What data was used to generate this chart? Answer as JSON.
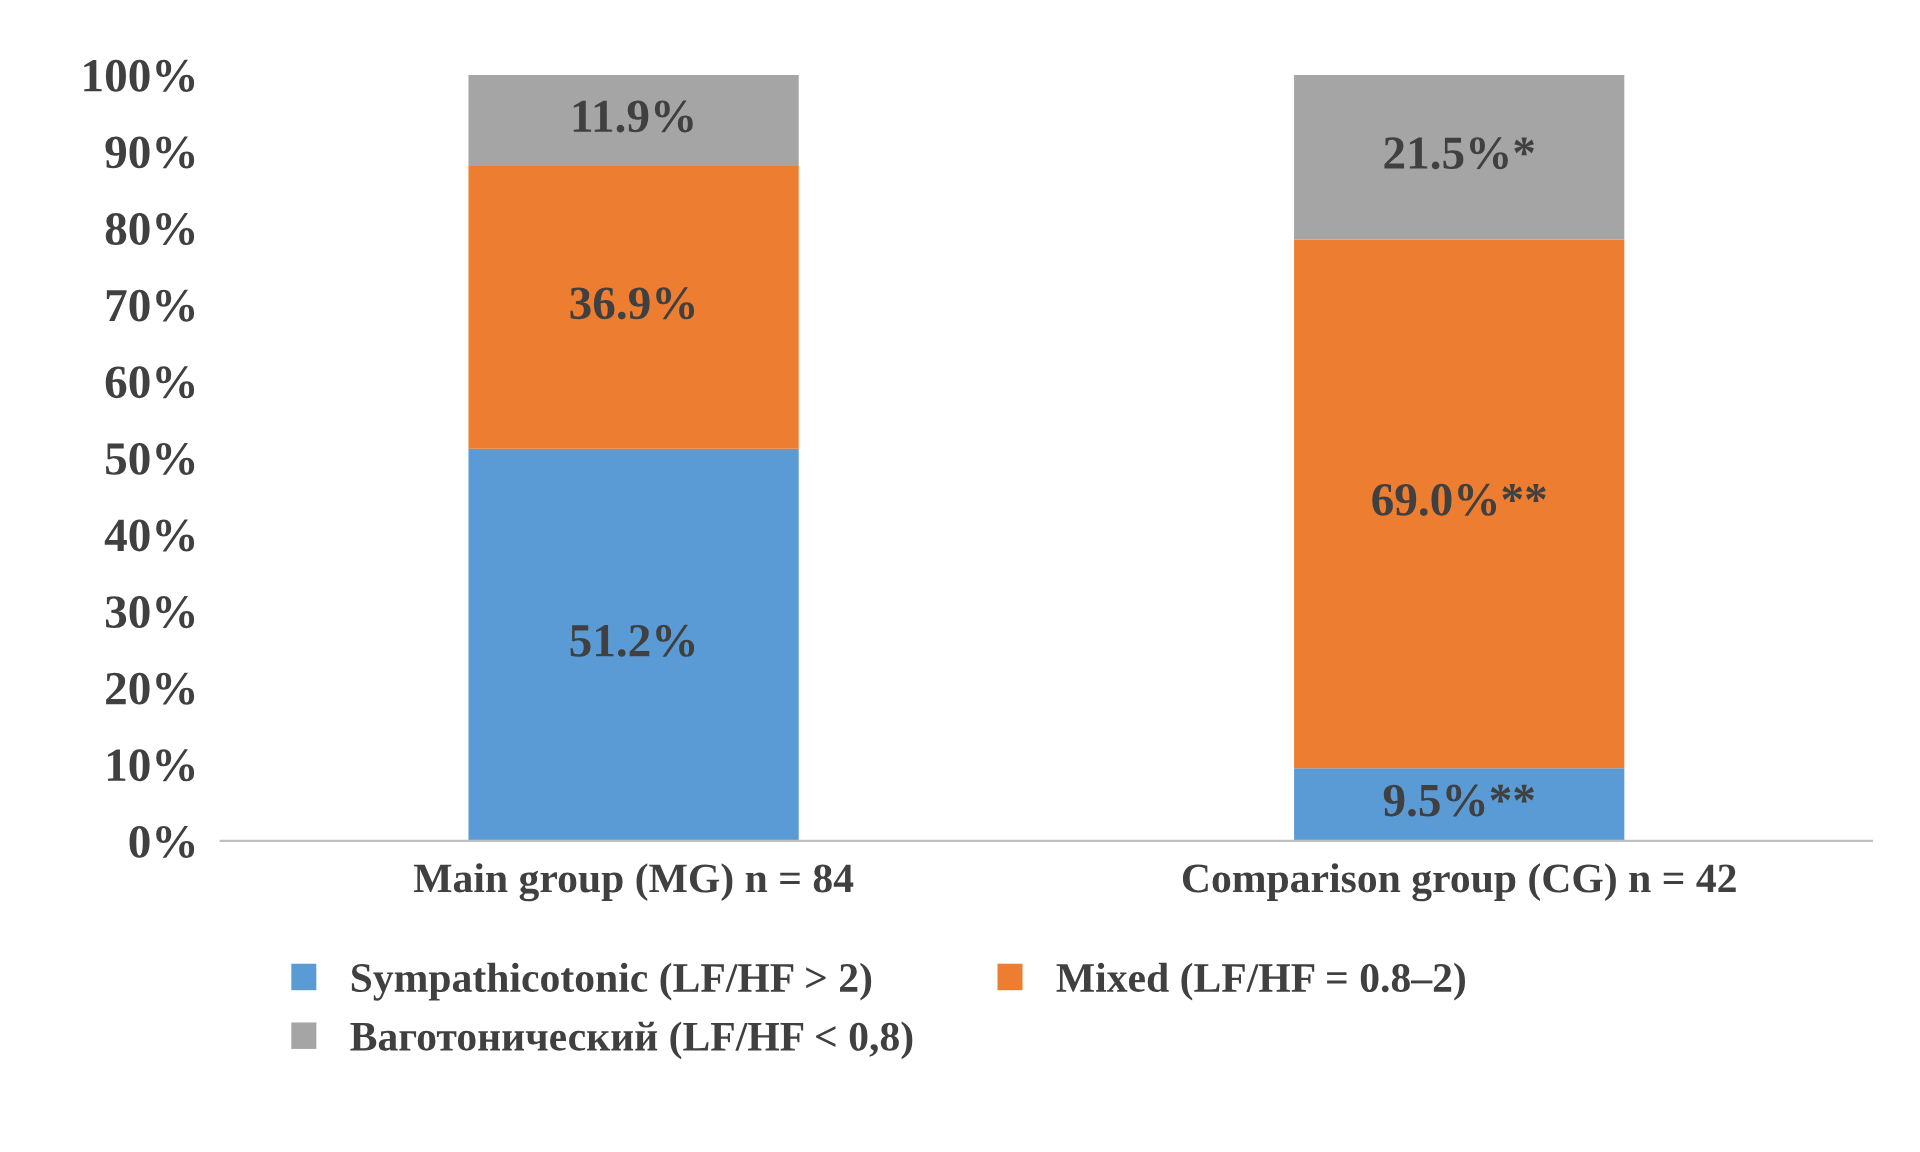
{
  "chart_data": {
    "type": "bar",
    "stacked": true,
    "categories": [
      "Main group (MG) n = 84",
      "Comparison group (CG) n = 42"
    ],
    "series": [
      {
        "name": "Sympathicotonic (LF/HF > 2)",
        "color": "#5b9bd5",
        "values": [
          51.2,
          9.5
        ],
        "value_labels": [
          "51.2%",
          "9.5%**"
        ]
      },
      {
        "name": "Mixed (LF/HF = 0.8–2)",
        "color": "#ed7d31",
        "values": [
          36.9,
          69.0
        ],
        "value_labels": [
          "36.9%",
          "69.0%**"
        ]
      },
      {
        "name": "Ваготонический (LF/HF < 0,8)",
        "color": "#a5a5a5",
        "values": [
          11.9,
          21.5
        ],
        "value_labels": [
          "11.9%",
          "21.5%*"
        ]
      }
    ],
    "ylim": [
      0,
      100
    ],
    "yticks": [
      {
        "value": 0,
        "label": "0%"
      },
      {
        "value": 10,
        "label": "10%"
      },
      {
        "value": 20,
        "label": "20%"
      },
      {
        "value": 30,
        "label": "30%"
      },
      {
        "value": 40,
        "label": "40%"
      },
      {
        "value": 50,
        "label": "50%"
      },
      {
        "value": 60,
        "label": "60%"
      },
      {
        "value": 70,
        "label": "70%"
      },
      {
        "value": 80,
        "label": "80%"
      },
      {
        "value": 90,
        "label": "90%"
      },
      {
        "value": 100,
        "label": "100%"
      }
    ],
    "grid": false,
    "legend": "bottom"
  }
}
